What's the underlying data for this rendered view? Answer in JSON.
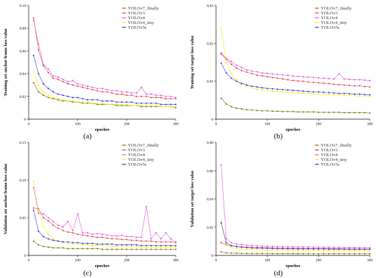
{
  "colors": {
    "YOLOv7_finally": "#7a6a00",
    "YOLOv3": "#e8333c",
    "YOLOv4": "#e04de0",
    "YOLOv4_tiny": "#f0f000",
    "YOLOv5s": "#2a2ad8"
  },
  "chart_data": [
    {
      "type": "line",
      "panel": "(a)",
      "xlabel": "epoches",
      "ylabel": "Training set anchor frame loss value",
      "xlim": [
        0,
        300
      ],
      "ylim": [
        0,
        0.1
      ],
      "xticks": [
        "0",
        "100",
        "200",
        "300"
      ],
      "yticks": [
        "0",
        "0.02",
        "0.04",
        "0.06",
        "0.08",
        "0.10"
      ],
      "legend_position": "top-right",
      "x": [
        10,
        20,
        30,
        40,
        50,
        60,
        70,
        80,
        90,
        100,
        110,
        120,
        130,
        140,
        150,
        160,
        170,
        180,
        190,
        200,
        210,
        220,
        230,
        240,
        250,
        260,
        270,
        280,
        290,
        300
      ],
      "series": [
        {
          "name": "YOLOv7_finally",
          "color_key": "YOLOv7_finally",
          "values": [
            0.032,
            0.024,
            0.021,
            0.019,
            0.018,
            0.017,
            0.016,
            0.016,
            0.015,
            0.015,
            0.014,
            0.014,
            0.014,
            0.013,
            0.013,
            0.013,
            0.013,
            0.012,
            0.012,
            0.012,
            0.012,
            0.012,
            0.011,
            0.011,
            0.011,
            0.011,
            0.011,
            0.011,
            0.011,
            0.01
          ]
        },
        {
          "name": "YOLOv3",
          "color_key": "YOLOv3",
          "values": [
            0.089,
            0.061,
            0.047,
            0.041,
            0.036,
            0.035,
            0.033,
            0.031,
            0.03,
            0.029,
            0.028,
            0.027,
            0.026,
            0.025,
            0.024,
            0.024,
            0.023,
            0.022,
            0.022,
            0.021,
            0.021,
            0.02,
            0.02,
            0.02,
            0.019,
            0.019,
            0.019,
            0.018,
            0.018,
            0.018
          ]
        },
        {
          "name": "YOLOv4",
          "color_key": "YOLOv4",
          "values": [
            0.087,
            0.066,
            0.048,
            0.044,
            0.038,
            0.037,
            0.035,
            0.033,
            0.034,
            0.031,
            0.03,
            0.029,
            0.028,
            0.027,
            0.027,
            0.026,
            0.025,
            0.025,
            0.024,
            0.024,
            0.023,
            0.023,
            0.028,
            0.022,
            0.022,
            0.021,
            0.021,
            0.02,
            0.02,
            0.019
          ]
        },
        {
          "name": "YOLOv4_tiny",
          "color_key": "YOLOv4_tiny",
          "values": [
            0.042,
            0.03,
            0.024,
            0.021,
            0.019,
            0.018,
            0.017,
            0.016,
            0.016,
            0.015,
            0.015,
            0.015,
            0.014,
            0.014,
            0.014,
            0.013,
            0.013,
            0.013,
            0.013,
            0.013,
            0.012,
            0.012,
            0.012,
            0.012,
            0.012,
            0.012,
            0.011,
            0.011,
            0.011,
            0.011
          ]
        },
        {
          "name": "YOLOv5s",
          "color_key": "YOLOv5s",
          "values": [
            0.056,
            0.04,
            0.031,
            0.027,
            0.024,
            0.022,
            0.021,
            0.02,
            0.019,
            0.019,
            0.018,
            0.017,
            0.017,
            0.017,
            0.016,
            0.016,
            0.016,
            0.015,
            0.015,
            0.015,
            0.015,
            0.014,
            0.014,
            0.014,
            0.014,
            0.014,
            0.013,
            0.013,
            0.013,
            0.013
          ]
        }
      ]
    },
    {
      "type": "line",
      "panel": "(b)",
      "xlabel": "epoches",
      "ylabel": "Training set target loss value",
      "xlim": [
        0,
        300
      ],
      "ylim": [
        0,
        0.03
      ],
      "xticks": [
        "0",
        "100",
        "200",
        "300"
      ],
      "yticks": [
        "0",
        "0.01",
        "0.02",
        "0.03"
      ],
      "legend_position": "top-right",
      "x": [
        10,
        20,
        30,
        40,
        50,
        60,
        70,
        80,
        90,
        100,
        110,
        120,
        130,
        140,
        150,
        160,
        170,
        180,
        190,
        200,
        210,
        220,
        230,
        240,
        250,
        260,
        270,
        280,
        290,
        300
      ],
      "series": [
        {
          "name": "YOLOv7_finally",
          "color_key": "YOLOv7_finally",
          "values": [
            0.0055,
            0.004,
            0.0033,
            0.0029,
            0.0027,
            0.0025,
            0.0024,
            0.0023,
            0.0022,
            0.0022,
            0.0021,
            0.0021,
            0.002,
            0.002,
            0.002,
            0.0019,
            0.0019,
            0.0019,
            0.0019,
            0.0018,
            0.0018,
            0.0018,
            0.0018,
            0.0018,
            0.0017,
            0.0017,
            0.0017,
            0.0017,
            0.0017,
            0.0016
          ]
        },
        {
          "name": "YOLOv3",
          "color_key": "YOLOv3",
          "values": [
            0.0172,
            0.0158,
            0.0145,
            0.0135,
            0.0128,
            0.0124,
            0.012,
            0.0116,
            0.0114,
            0.0112,
            0.011,
            0.0108,
            0.0106,
            0.0104,
            0.0102,
            0.0101,
            0.01,
            0.0098,
            0.0097,
            0.0096,
            0.0095,
            0.0094,
            0.0092,
            0.0091,
            0.009,
            0.0089,
            0.0088,
            0.0088,
            0.0086,
            0.0085
          ]
        },
        {
          "name": "YOLOv4",
          "color_key": "YOLOv4",
          "values": [
            0.0175,
            0.016,
            0.0152,
            0.0142,
            0.0136,
            0.013,
            0.0127,
            0.0125,
            0.0122,
            0.0121,
            0.0119,
            0.0118,
            0.0117,
            0.0116,
            0.0114,
            0.0113,
            0.0112,
            0.0111,
            0.011,
            0.0109,
            0.0108,
            0.0107,
            0.0106,
            0.012,
            0.0106,
            0.0105,
            0.0104,
            0.0104,
            0.0103,
            0.0102
          ]
        },
        {
          "name": "YOLOv4_tiny",
          "color_key": "YOLOv4_tiny",
          "values": [
            0.024,
            0.015,
            0.012,
            0.0105,
            0.0095,
            0.0088,
            0.0082,
            0.0079,
            0.0077,
            0.0075,
            0.0074,
            0.0073,
            0.0072,
            0.0071,
            0.007,
            0.0069,
            0.0068,
            0.0068,
            0.0067,
            0.0066,
            0.0066,
            0.0065,
            0.0064,
            0.0064,
            0.0063,
            0.0062,
            0.0062,
            0.0061,
            0.0061,
            0.006
          ]
        },
        {
          "name": "YOLOv5s",
          "color_key": "YOLOv5s",
          "values": [
            0.0148,
            0.0122,
            0.0108,
            0.01,
            0.0094,
            0.009,
            0.0087,
            0.0085,
            0.0083,
            0.0081,
            0.008,
            0.0079,
            0.0078,
            0.0077,
            0.0076,
            0.0075,
            0.0074,
            0.0073,
            0.0072,
            0.0072,
            0.0071,
            0.007,
            0.0069,
            0.0068,
            0.0068,
            0.0067,
            0.0066,
            0.0066,
            0.0065,
            0.0064
          ]
        }
      ]
    },
    {
      "type": "line",
      "panel": "(c)",
      "xlabel": "epoches",
      "ylabel": "Validation set anchor frame loss value",
      "xlim": [
        0,
        300
      ],
      "ylim": [
        0,
        0.15
      ],
      "xticks": [
        "0",
        "100",
        "200",
        "300"
      ],
      "yticks": [
        "0",
        "0.05",
        "0.10",
        "0.15"
      ],
      "legend_position": "top-right",
      "x": [
        10,
        20,
        30,
        40,
        50,
        60,
        70,
        80,
        90,
        100,
        110,
        120,
        130,
        140,
        150,
        160,
        170,
        180,
        190,
        200,
        210,
        220,
        230,
        240,
        250,
        260,
        270,
        280,
        290,
        300
      ],
      "series": [
        {
          "name": "YOLOv7_finally",
          "color_key": "YOLOv7_finally",
          "values": [
            0.019,
            0.014,
            0.012,
            0.011,
            0.01,
            0.01,
            0.01,
            0.009,
            0.009,
            0.009,
            0.009,
            0.009,
            0.009,
            0.009,
            0.008,
            0.008,
            0.008,
            0.008,
            0.008,
            0.008,
            0.008,
            0.008,
            0.008,
            0.008,
            0.008,
            0.008,
            0.008,
            0.008,
            0.008,
            0.008
          ]
        },
        {
          "name": "YOLOv3",
          "color_key": "YOLOv3",
          "values": [
            0.063,
            0.062,
            0.05,
            0.046,
            0.04,
            0.036,
            0.033,
            0.031,
            0.03,
            0.028,
            0.027,
            0.026,
            0.025,
            0.024,
            0.024,
            0.023,
            0.022,
            0.022,
            0.021,
            0.021,
            0.02,
            0.02,
            0.019,
            0.019,
            0.019,
            0.018,
            0.018,
            0.018,
            0.018,
            0.017
          ]
        },
        {
          "name": "YOLOv4",
          "color_key": "YOLOv4",
          "values": [
            0.09,
            0.056,
            0.055,
            0.05,
            0.045,
            0.04,
            0.038,
            0.045,
            0.033,
            0.055,
            0.03,
            0.03,
            0.028,
            0.029,
            0.028,
            0.027,
            0.026,
            0.026,
            0.027,
            0.025,
            0.025,
            0.024,
            0.024,
            0.065,
            0.022,
            0.03,
            0.022,
            0.03,
            0.022,
            0.018
          ]
        },
        {
          "name": "YOLOv4_tiny",
          "color_key": "YOLOv4_tiny",
          "values": [
            0.098,
            0.06,
            0.038,
            0.028,
            0.022,
            0.019,
            0.017,
            0.016,
            0.015,
            0.015,
            0.014,
            0.014,
            0.013,
            0.013,
            0.013,
            0.013,
            0.012,
            0.012,
            0.012,
            0.012,
            0.012,
            0.012,
            0.011,
            0.011,
            0.011,
            0.011,
            0.011,
            0.011,
            0.011,
            0.011
          ]
        },
        {
          "name": "YOLOv5s",
          "color_key": "YOLOv5s",
          "values": [
            0.06,
            0.032,
            0.025,
            0.022,
            0.02,
            0.019,
            0.018,
            0.018,
            0.017,
            0.017,
            0.016,
            0.016,
            0.016,
            0.015,
            0.015,
            0.015,
            0.015,
            0.014,
            0.014,
            0.014,
            0.014,
            0.014,
            0.013,
            0.013,
            0.013,
            0.013,
            0.013,
            0.013,
            0.013,
            0.013
          ]
        }
      ]
    },
    {
      "type": "line",
      "panel": "(d)",
      "xlabel": "epoches",
      "ylabel": "Validation set target loss value",
      "xlim": [
        0,
        300
      ],
      "ylim": [
        0,
        0.08
      ],
      "xticks": [
        "0",
        "100",
        "200",
        "300"
      ],
      "yticks": [
        "0",
        "0.02",
        "0.04",
        "0.06",
        "0.08"
      ],
      "legend_position": "top-right",
      "x": [
        10,
        20,
        30,
        40,
        50,
        60,
        70,
        80,
        90,
        100,
        110,
        120,
        130,
        140,
        150,
        160,
        170,
        180,
        190,
        200,
        210,
        220,
        230,
        240,
        250,
        260,
        270,
        280,
        290,
        300
      ],
      "series": [
        {
          "name": "YOLOv7_finally",
          "color_key": "YOLOv7_finally",
          "values": [
            0.0025,
            0.0018,
            0.0016,
            0.0015,
            0.0014,
            0.0014,
            0.0013,
            0.0013,
            0.0013,
            0.0013,
            0.0012,
            0.0012,
            0.0012,
            0.0012,
            0.0012,
            0.0012,
            0.0012,
            0.0011,
            0.0011,
            0.0011,
            0.0011,
            0.0011,
            0.0011,
            0.0011,
            0.0011,
            0.0011,
            0.0011,
            0.0011,
            0.0011,
            0.0011
          ]
        },
        {
          "name": "YOLOv3",
          "color_key": "YOLOv3",
          "values": [
            0.009,
            0.0075,
            0.0068,
            0.0064,
            0.006,
            0.0058,
            0.0057,
            0.0056,
            0.0055,
            0.0054,
            0.0053,
            0.0052,
            0.0052,
            0.0051,
            0.0051,
            0.005,
            0.005,
            0.005,
            0.0049,
            0.0049,
            0.0049,
            0.0048,
            0.0048,
            0.0048,
            0.0047,
            0.0047,
            0.0047,
            0.0047,
            0.0046,
            0.0046
          ]
        },
        {
          "name": "YOLOv4",
          "color_key": "YOLOv4",
          "values": [
            0.064,
            0.012,
            0.009,
            0.008,
            0.0075,
            0.0072,
            0.007,
            0.0068,
            0.0066,
            0.0065,
            0.0064,
            0.0063,
            0.0062,
            0.0062,
            0.0061,
            0.006,
            0.006,
            0.0059,
            0.0059,
            0.0058,
            0.0058,
            0.0058,
            0.0057,
            0.0057,
            0.0056,
            0.0056,
            0.0056,
            0.0055,
            0.0055,
            0.0055
          ]
        },
        {
          "name": "YOLOv4_tiny",
          "color_key": "YOLOv4_tiny",
          "values": [
            0.024,
            0.008,
            0.0055,
            0.0048,
            0.0044,
            0.0042,
            0.004,
            0.0039,
            0.0038,
            0.0037,
            0.0037,
            0.0036,
            0.0036,
            0.0035,
            0.0035,
            0.0035,
            0.0034,
            0.0034,
            0.0034,
            0.0034,
            0.0033,
            0.0033,
            0.0033,
            0.0033,
            0.0033,
            0.0032,
            0.0032,
            0.0032,
            0.0032,
            0.0032
          ]
        },
        {
          "name": "YOLOv5s",
          "color_key": "YOLOv5s",
          "values": [
            0.023,
            0.009,
            0.007,
            0.0062,
            0.0058,
            0.0055,
            0.0053,
            0.0052,
            0.0051,
            0.005,
            0.0049,
            0.0048,
            0.0048,
            0.0047,
            0.0047,
            0.0046,
            0.0046,
            0.0046,
            0.0045,
            0.0045,
            0.0045,
            0.0044,
            0.0044,
            0.0044,
            0.0044,
            0.0043,
            0.0043,
            0.0043,
            0.0043,
            0.0043
          ]
        }
      ]
    }
  ],
  "legend_labels": {
    "panel_a": [
      "YOLOv7_finally",
      "YOLOv3",
      "YOLOv4",
      "YOLOv4_tiny",
      "YOLOv5s"
    ],
    "panel_b": [
      "YOLOv7_finally",
      "YOLOv3",
      "YOLOv4",
      "YOLOv4_tiny",
      "YOLOv5s"
    ],
    "panel_c": [
      "YOLOv7_finally",
      "YOLOv3",
      "YOLOv4",
      "YOLOv4_tiny",
      "YOLOv5s"
    ],
    "panel_d": [
      "YOLOv7_finally",
      "YOLOv3",
      "YOLOv4",
      "YOLOv4_tiny",
      "YOLOv5s"
    ]
  }
}
